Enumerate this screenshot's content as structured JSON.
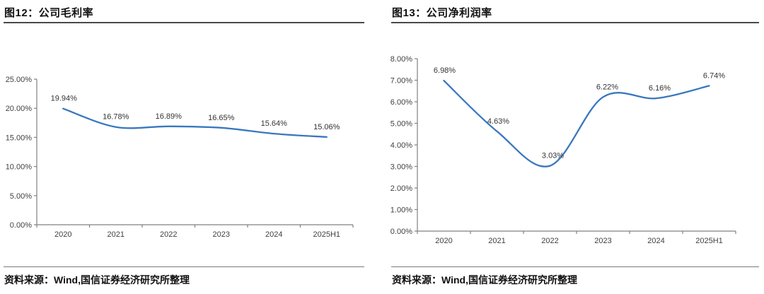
{
  "colors": {
    "line": "#3878BE",
    "axis": "#808080",
    "tick_label": "#404040",
    "data_label": "#333333",
    "title_rule": "#4a4a4a",
    "source_rule": "#7a7a7a"
  },
  "chart_data": [
    {
      "type": "line",
      "title": "图12：公司毛利率",
      "source": "资料来源：Wind,国信证券经济研究所整理",
      "categories": [
        "2020",
        "2021",
        "2022",
        "2023",
        "2024",
        "2025H1"
      ],
      "series": [
        {
          "name": "公司毛利率",
          "values": [
            19.94,
            16.78,
            16.89,
            16.65,
            15.64,
            15.06
          ]
        }
      ],
      "data_labels": [
        "19.94%",
        "16.78%",
        "16.89%",
        "16.65%",
        "15.64%",
        "15.06%"
      ],
      "label_dx": [
        1,
        0,
        0,
        0,
        0,
        0
      ],
      "ylim": [
        0,
        25
      ],
      "ytick_labels": [
        "0.00%",
        "5.00%",
        "10.00%",
        "15.00%",
        "20.00%",
        "25.00%"
      ],
      "xlabel": "",
      "ylabel": "",
      "grid": false,
      "legend": "none",
      "smooth": true
    },
    {
      "type": "line",
      "title": "图13：公司净利润率",
      "source": "资料来源：Wind,国信证券经济研究所整理",
      "categories": [
        "2020",
        "2021",
        "2022",
        "2023",
        "2024",
        "2025H1"
      ],
      "series": [
        {
          "name": "公司净利润率",
          "values": [
            6.98,
            4.63,
            3.03,
            6.22,
            6.16,
            6.74
          ]
        }
      ],
      "data_labels": [
        "6.98%",
        "4.63%",
        "3.03%",
        "6.22%",
        "6.16%",
        "6.74%"
      ],
      "label_dx": [
        1,
        2,
        4,
        6,
        5,
        7
      ],
      "ylim": [
        0,
        8
      ],
      "ytick_labels": [
        "0.00%",
        "1.00%",
        "2.00%",
        "3.00%",
        "4.00%",
        "5.00%",
        "6.00%",
        "7.00%",
        "8.00%"
      ],
      "xlabel": "",
      "ylabel": "",
      "grid": false,
      "legend": "none",
      "smooth": true
    }
  ]
}
